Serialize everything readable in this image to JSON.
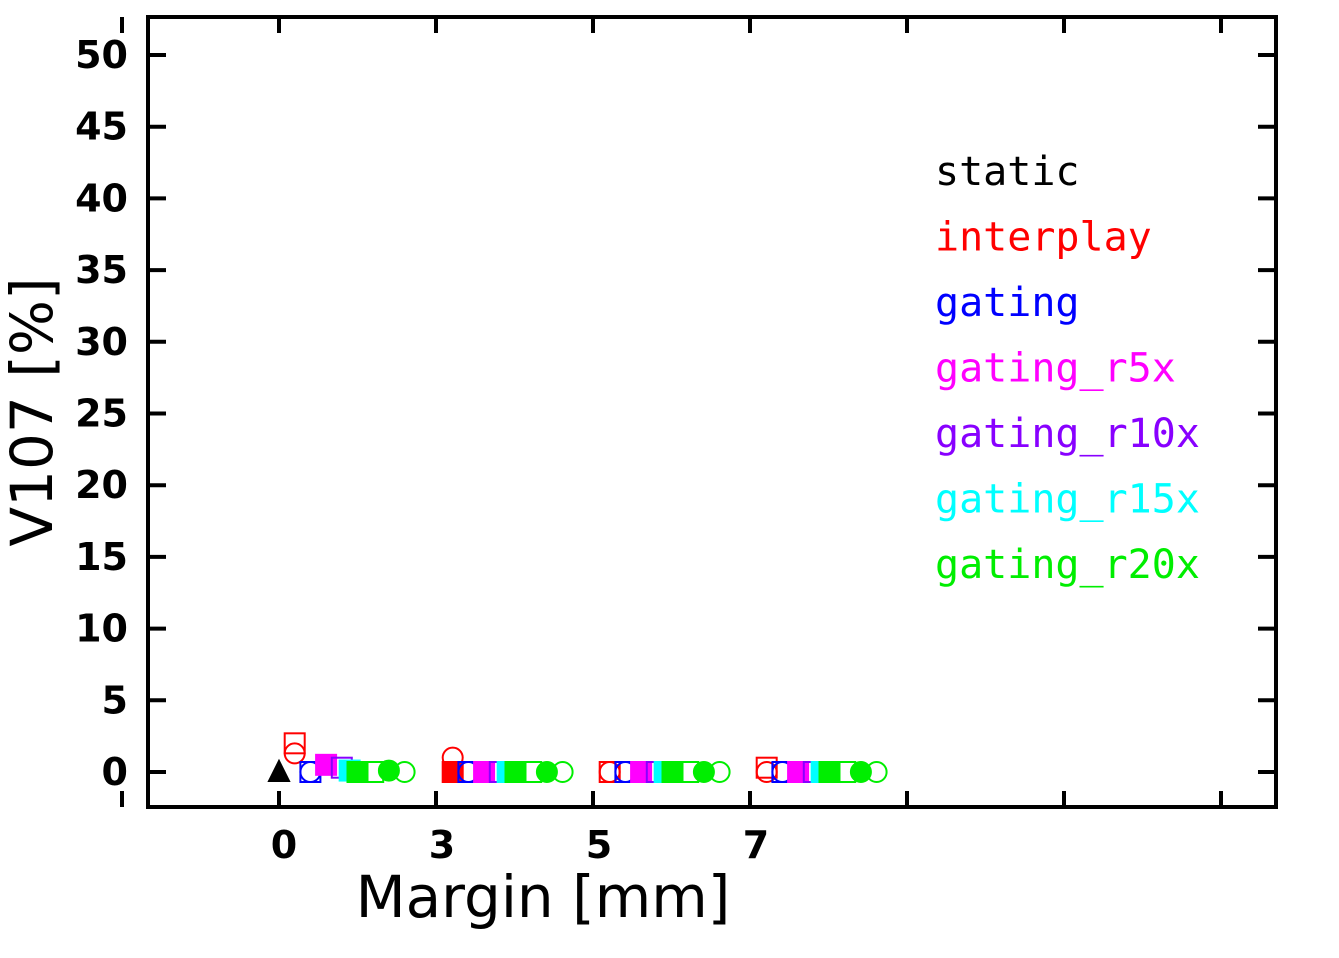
{
  "chart_data": {
    "type": "scatter",
    "title": "",
    "xlabel": "Margin [mm]",
    "ylabel": "V107 [%]",
    "x_tick_labels": [
      "0",
      "3",
      "5",
      "7"
    ],
    "y_ticks": [
      0,
      5,
      10,
      15,
      20,
      25,
      30,
      35,
      40,
      45,
      50
    ],
    "y_tick_labels": [
      "0",
      "5",
      "10",
      "15",
      "20",
      "25",
      "30",
      "35",
      "40",
      "45",
      "50"
    ],
    "ylim": [
      -2.5,
      52.5
    ],
    "grid": false,
    "legend_position": "top-right",
    "categories": [
      "0",
      "3",
      "5",
      "7"
    ],
    "series": [
      {
        "name": "static",
        "color": "#000000",
        "markers": [
          {
            "category": "0",
            "offset": 0.0,
            "shape": "triangle",
            "filled": true,
            "y": 0.0
          }
        ]
      },
      {
        "name": "interplay",
        "color": "#ff0000",
        "markers": [
          {
            "category": "0",
            "offset": 0.1,
            "shape": "square",
            "filled": false,
            "y": 2.0
          },
          {
            "category": "0",
            "offset": 0.1,
            "shape": "circle",
            "filled": false,
            "y": 1.3
          },
          {
            "category": "3",
            "offset": 0.1,
            "shape": "square",
            "filled": true,
            "y": 0.0
          },
          {
            "category": "3",
            "offset": 0.1,
            "shape": "circle",
            "filled": false,
            "y": 1.0
          },
          {
            "category": "5",
            "offset": 0.1,
            "shape": "square",
            "filled": false,
            "y": 0.0
          },
          {
            "category": "5",
            "offset": 0.1,
            "shape": "circle",
            "filled": false,
            "y": 0.0
          },
          {
            "category": "7",
            "offset": 0.1,
            "shape": "square",
            "filled": false,
            "y": 0.3
          },
          {
            "category": "7",
            "offset": 0.1,
            "shape": "circle",
            "filled": false,
            "y": 0.0
          }
        ]
      },
      {
        "name": "gating",
        "color": "#0000ff",
        "markers": [
          {
            "category": "0",
            "offset": 0.2,
            "shape": "square",
            "filled": false,
            "y": 0.0
          },
          {
            "category": "0",
            "offset": 0.2,
            "shape": "circle",
            "filled": false,
            "y": 0.0
          },
          {
            "category": "3",
            "offset": 0.2,
            "shape": "square",
            "filled": false,
            "y": 0.0
          },
          {
            "category": "3",
            "offset": 0.2,
            "shape": "circle",
            "filled": false,
            "y": 0.0
          },
          {
            "category": "5",
            "offset": 0.2,
            "shape": "square",
            "filled": false,
            "y": 0.0
          },
          {
            "category": "5",
            "offset": 0.2,
            "shape": "circle",
            "filled": false,
            "y": 0.0
          },
          {
            "category": "7",
            "offset": 0.2,
            "shape": "square",
            "filled": false,
            "y": 0.0
          },
          {
            "category": "7",
            "offset": 0.2,
            "shape": "circle",
            "filled": false,
            "y": 0.0
          }
        ]
      },
      {
        "name": "gating_r5x",
        "color": "#ff00ff",
        "markers": [
          {
            "category": "0",
            "offset": 0.3,
            "shape": "square",
            "filled": true,
            "y": 0.5
          },
          {
            "category": "3",
            "offset": 0.3,
            "shape": "square",
            "filled": true,
            "y": 0.0
          },
          {
            "category": "5",
            "offset": 0.3,
            "shape": "square",
            "filled": true,
            "y": 0.0
          },
          {
            "category": "7",
            "offset": 0.3,
            "shape": "square",
            "filled": true,
            "y": 0.0
          }
        ]
      },
      {
        "name": "gating_r10x",
        "color": "#8800ff",
        "markers": [
          {
            "category": "0",
            "offset": 0.4,
            "shape": "square",
            "filled": false,
            "y": 0.3
          },
          {
            "category": "3",
            "offset": 0.4,
            "shape": "square",
            "filled": false,
            "y": 0.0
          },
          {
            "category": "5",
            "offset": 0.4,
            "shape": "square",
            "filled": false,
            "y": 0.0
          },
          {
            "category": "7",
            "offset": 0.4,
            "shape": "square",
            "filled": false,
            "y": 0.0
          }
        ]
      },
      {
        "name": "gating_r15x",
        "color": "#00ffff",
        "markers": [
          {
            "category": "0",
            "offset": 0.45,
            "shape": "square",
            "filled": true,
            "y": 0.1
          },
          {
            "category": "3",
            "offset": 0.45,
            "shape": "square",
            "filled": true,
            "y": 0.0
          },
          {
            "category": "5",
            "offset": 0.45,
            "shape": "square",
            "filled": true,
            "y": 0.0
          },
          {
            "category": "7",
            "offset": 0.45,
            "shape": "square",
            "filled": true,
            "y": 0.0
          }
        ]
      },
      {
        "name": "gating_r20x",
        "color": "#00ee00",
        "markers": [
          {
            "category": "0",
            "offset": 0.5,
            "shape": "square",
            "filled": true,
            "y": 0.0
          },
          {
            "category": "0",
            "offset": 0.6,
            "shape": "square",
            "filled": false,
            "y": 0.0
          },
          {
            "category": "0",
            "offset": 0.7,
            "shape": "circle",
            "filled": true,
            "y": 0.1
          },
          {
            "category": "0",
            "offset": 0.8,
            "shape": "circle",
            "filled": false,
            "y": 0.0
          },
          {
            "category": "3",
            "offset": 0.5,
            "shape": "square",
            "filled": true,
            "y": 0.0
          },
          {
            "category": "3",
            "offset": 0.6,
            "shape": "square",
            "filled": false,
            "y": 0.0
          },
          {
            "category": "3",
            "offset": 0.7,
            "shape": "circle",
            "filled": true,
            "y": 0.0
          },
          {
            "category": "3",
            "offset": 0.8,
            "shape": "circle",
            "filled": false,
            "y": 0.0
          },
          {
            "category": "5",
            "offset": 0.5,
            "shape": "square",
            "filled": true,
            "y": 0.0
          },
          {
            "category": "5",
            "offset": 0.6,
            "shape": "square",
            "filled": false,
            "y": 0.0
          },
          {
            "category": "5",
            "offset": 0.7,
            "shape": "circle",
            "filled": true,
            "y": 0.0
          },
          {
            "category": "5",
            "offset": 0.8,
            "shape": "circle",
            "filled": false,
            "y": 0.0
          },
          {
            "category": "7",
            "offset": 0.5,
            "shape": "square",
            "filled": true,
            "y": 0.0
          },
          {
            "category": "7",
            "offset": 0.6,
            "shape": "square",
            "filled": false,
            "y": 0.0
          },
          {
            "category": "7",
            "offset": 0.7,
            "shape": "circle",
            "filled": true,
            "y": 0.0
          },
          {
            "category": "7",
            "offset": 0.8,
            "shape": "circle",
            "filled": false,
            "y": 0.0
          }
        ]
      }
    ]
  }
}
